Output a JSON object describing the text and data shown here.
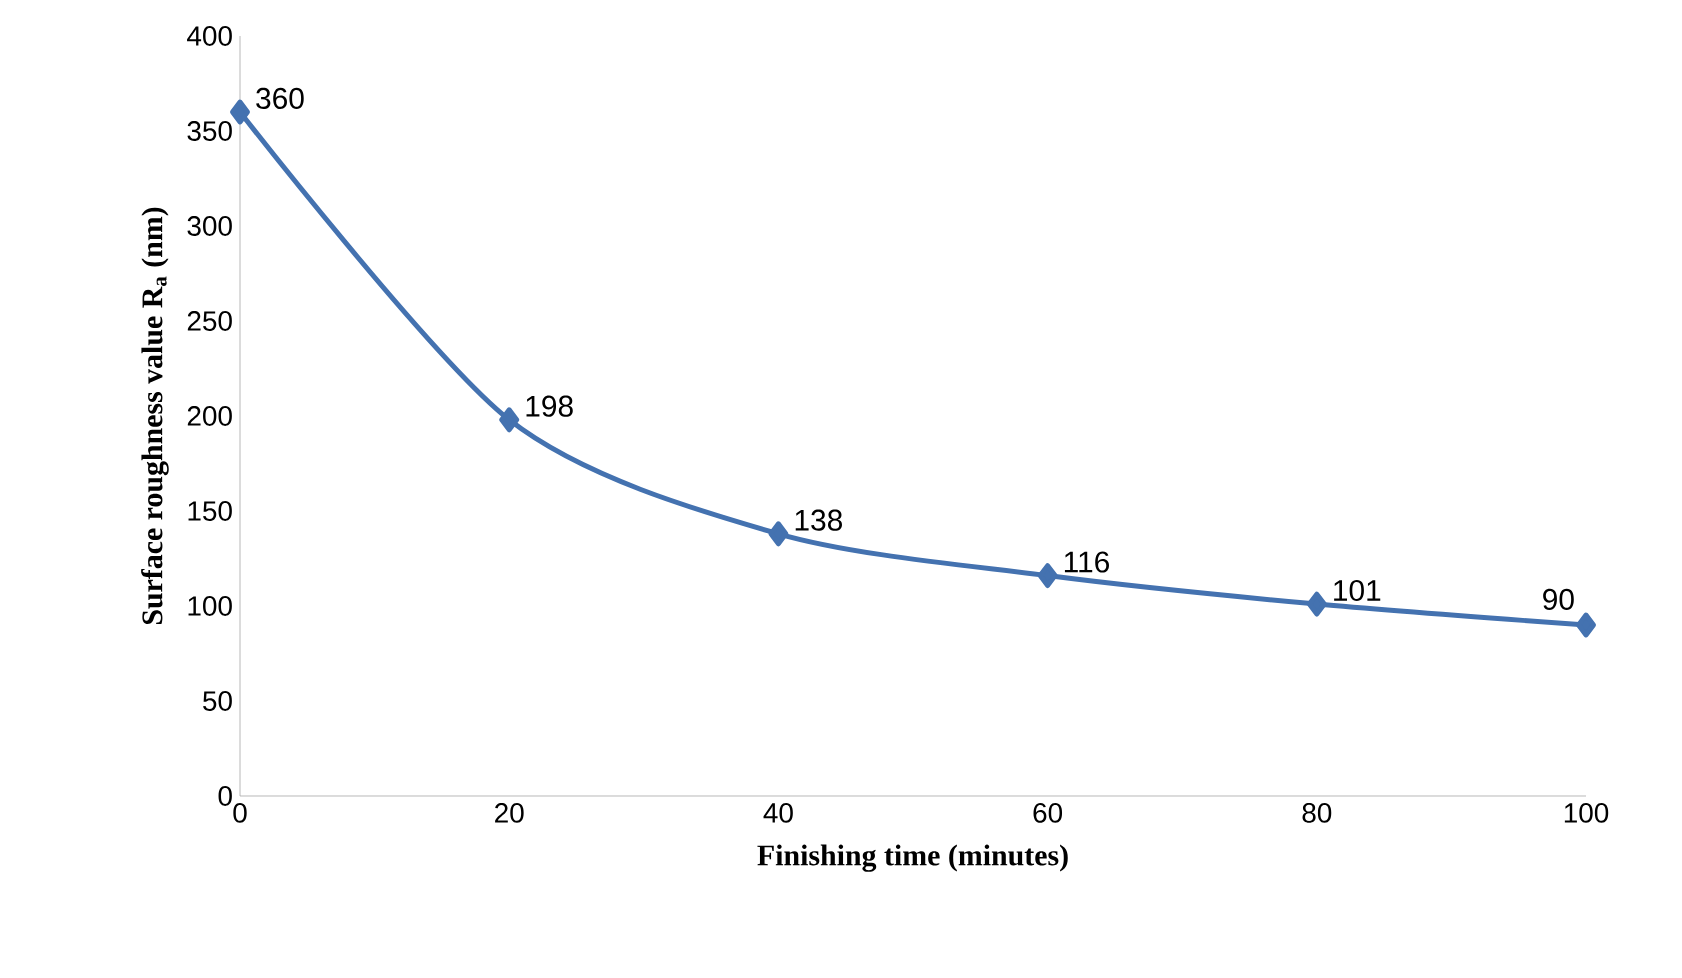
{
  "chart_data": {
    "type": "line",
    "xlabel": "Finishing time (minutes)",
    "ylabel": "Surface roughness value R$_{a}$ (nm)",
    "x": [
      0,
      20,
      40,
      60,
      80,
      100
    ],
    "values": [
      360,
      198,
      138,
      116,
      101,
      90
    ],
    "color": "#4472b0",
    "marker": "diamond",
    "line_style": "solid",
    "data_labels": true,
    "grid": false,
    "xlim": [
      0,
      100
    ],
    "ylim": [
      0,
      400
    ],
    "xticks": [
      0,
      20,
      40,
      60,
      80,
      100
    ],
    "yticks": [
      0,
      50,
      100,
      150,
      200,
      250,
      300,
      350,
      400
    ]
  }
}
